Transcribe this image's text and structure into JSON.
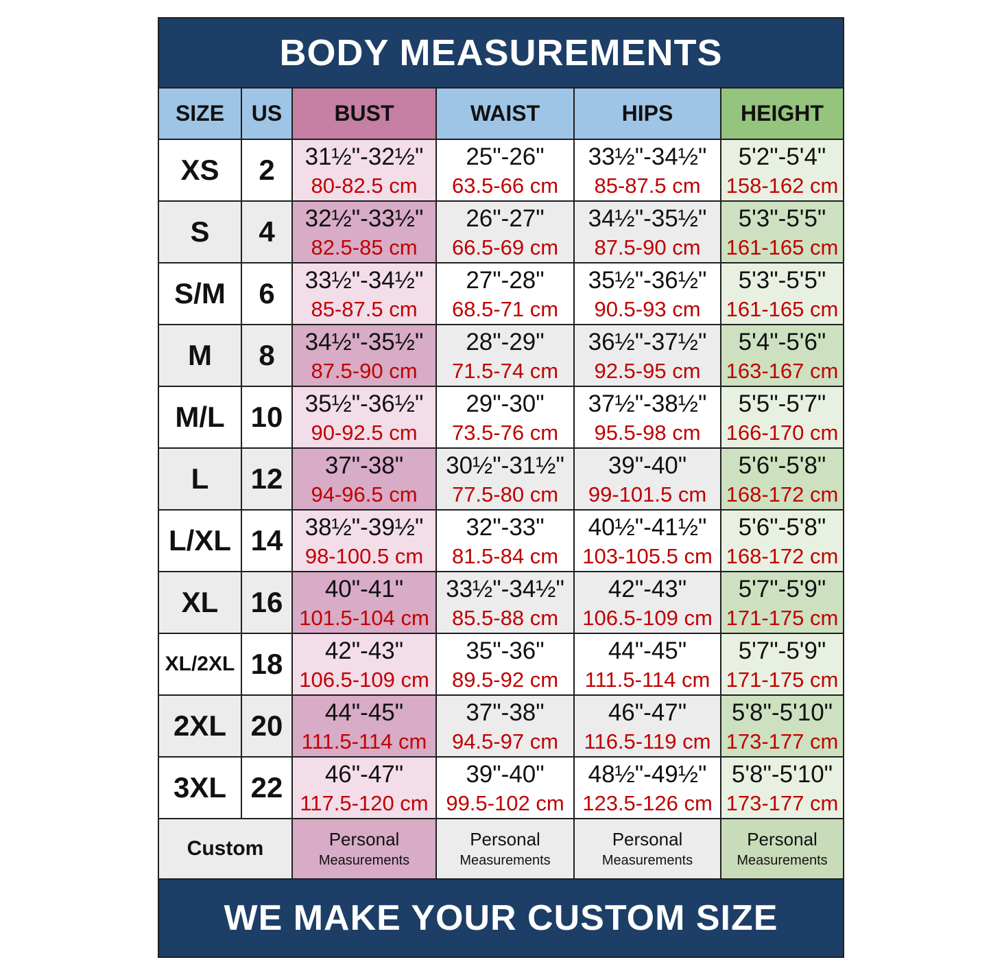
{
  "title": "BODY MEASUREMENTS",
  "footer": "WE MAKE YOUR CUSTOM SIZE",
  "columns": [
    "SIZE",
    "US",
    "BUST",
    "WAIST",
    "HIPS",
    "HEIGHT"
  ],
  "rows": [
    {
      "size": "XS",
      "us": "2",
      "bust_in": "31½\"-32½\"",
      "bust_cm": "80-82.5 cm",
      "waist_in": "25\"-26\"",
      "waist_cm": "63.5-66 cm",
      "hips_in": "33½\"-34½\"",
      "hips_cm": "85-87.5 cm",
      "height_in": "5'2\"-5'4\"",
      "height_cm": "158-162 cm"
    },
    {
      "size": "S",
      "us": "4",
      "bust_in": "32½\"-33½\"",
      "bust_cm": "82.5-85 cm",
      "waist_in": "26\"-27\"",
      "waist_cm": "66.5-69 cm",
      "hips_in": "34½\"-35½\"",
      "hips_cm": "87.5-90 cm",
      "height_in": "5'3\"-5'5\"",
      "height_cm": "161-165 cm"
    },
    {
      "size": "S/M",
      "us": "6",
      "bust_in": "33½\"-34½\"",
      "bust_cm": "85-87.5 cm",
      "waist_in": "27\"-28\"",
      "waist_cm": "68.5-71 cm",
      "hips_in": "35½\"-36½\"",
      "hips_cm": "90.5-93 cm",
      "height_in": "5'3\"-5'5\"",
      "height_cm": "161-165 cm"
    },
    {
      "size": "M",
      "us": "8",
      "bust_in": "34½\"-35½\"",
      "bust_cm": "87.5-90 cm",
      "waist_in": "28\"-29\"",
      "waist_cm": "71.5-74 cm",
      "hips_in": "36½\"-37½\"",
      "hips_cm": "92.5-95 cm",
      "height_in": "5'4\"-5'6\"",
      "height_cm": "163-167 cm"
    },
    {
      "size": "M/L",
      "us": "10",
      "bust_in": "35½\"-36½\"",
      "bust_cm": "90-92.5 cm",
      "waist_in": "29\"-30\"",
      "waist_cm": "73.5-76 cm",
      "hips_in": "37½\"-38½\"",
      "hips_cm": "95.5-98 cm",
      "height_in": "5'5\"-5'7\"",
      "height_cm": "166-170 cm"
    },
    {
      "size": "L",
      "us": "12",
      "bust_in": "37\"-38\"",
      "bust_cm": "94-96.5 cm",
      "waist_in": "30½\"-31½\"",
      "waist_cm": "77.5-80 cm",
      "hips_in": "39\"-40\"",
      "hips_cm": "99-101.5 cm",
      "height_in": "5'6\"-5'8\"",
      "height_cm": "168-172 cm"
    },
    {
      "size": "L/XL",
      "us": "14",
      "bust_in": "38½\"-39½\"",
      "bust_cm": "98-100.5 cm",
      "waist_in": "32\"-33\"",
      "waist_cm": "81.5-84 cm",
      "hips_in": "40½\"-41½\"",
      "hips_cm": "103-105.5 cm",
      "height_in": "5'6\"-5'8\"",
      "height_cm": "168-172 cm"
    },
    {
      "size": "XL",
      "us": "16",
      "bust_in": "40\"-41\"",
      "bust_cm": "101.5-104 cm",
      "waist_in": "33½\"-34½\"",
      "waist_cm": "85.5-88 cm",
      "hips_in": "42\"-43\"",
      "hips_cm": "106.5-109 cm",
      "height_in": "5'7\"-5'9\"",
      "height_cm": "171-175 cm"
    },
    {
      "size": "XL/2XL",
      "us": "18",
      "bust_in": "42\"-43\"",
      "bust_cm": "106.5-109 cm",
      "waist_in": "35\"-36\"",
      "waist_cm": "89.5-92 cm",
      "hips_in": "44\"-45\"",
      "hips_cm": "111.5-114 cm",
      "height_in": "5'7\"-5'9\"",
      "height_cm": "171-175 cm"
    },
    {
      "size": "2XL",
      "us": "20",
      "bust_in": "44\"-45\"",
      "bust_cm": "111.5-114 cm",
      "waist_in": "37\"-38\"",
      "waist_cm": "94.5-97 cm",
      "hips_in": "46\"-47\"",
      "hips_cm": "116.5-119 cm",
      "height_in": "5'8\"-5'10\"",
      "height_cm": "173-177 cm"
    },
    {
      "size": "3XL",
      "us": "22",
      "bust_in": "46\"-47\"",
      "bust_cm": "117.5-120 cm",
      "waist_in": "39\"-40\"",
      "waist_cm": "99.5-102 cm",
      "hips_in": "48½\"-49½\"",
      "hips_cm": "123.5-126 cm",
      "height_in": "5'8\"-5'10\"",
      "height_cm": "173-177 cm"
    }
  ],
  "custom_row": {
    "label": "Custom",
    "personal": "Personal",
    "measurements": "Measurements"
  },
  "colors": {
    "navy": "#1d3e66",
    "header_blue": "#9fc5e6",
    "header_pink": "#c57fa3",
    "header_green": "#94c47e",
    "row_white": "#ffffff",
    "row_gray": "#ececec",
    "bust_light": "#f2dde9",
    "bust_dark": "#d8abc6",
    "height_light": "#e8f1e1",
    "height_dark": "#cde1c0",
    "cm_red": "#c00000",
    "text_black": "#111111"
  }
}
